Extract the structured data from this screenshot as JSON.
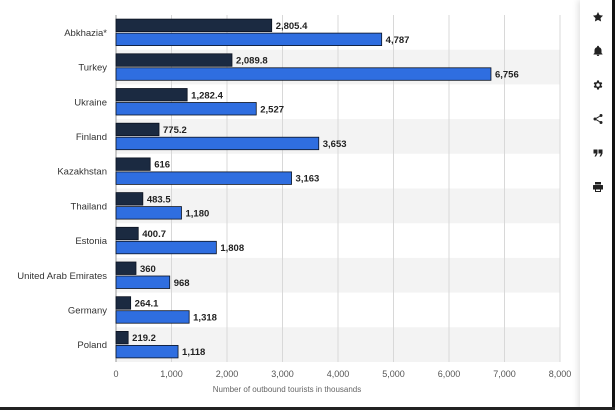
{
  "chart_data": {
    "type": "bar",
    "orientation": "horizontal",
    "categories": [
      "Abkhazia*",
      "Turkey",
      "Ukraine",
      "Finland",
      "Kazakhstan",
      "Thailand",
      "Estonia",
      "United Arab Emirates",
      "Germany",
      "Poland"
    ],
    "series": [
      {
        "color": "#1b2a41",
        "values": [
          2805.4,
          2089.8,
          1282.4,
          775.2,
          616,
          483.5,
          400.7,
          360,
          264.1,
          219.2
        ],
        "labels": [
          "2,805.4",
          "2,089.8",
          "1,282.4",
          "775.2",
          "616",
          "483.5",
          "400.7",
          "360",
          "264.1",
          "219.2"
        ]
      },
      {
        "color": "#2f6ee0",
        "values": [
          4787,
          6756,
          2527,
          3653,
          3163,
          1180,
          1808,
          968,
          1318,
          1118
        ],
        "labels": [
          "4,787",
          "6,756",
          "2,527",
          "3,653",
          "3,163",
          "1,180",
          "1,808",
          "968",
          "1,318",
          "1,118"
        ]
      }
    ],
    "xlabel": "Number of outbound tourists in thousands",
    "xlim": [
      0,
      8000
    ],
    "xticks": [
      0,
      1000,
      2000,
      3000,
      4000,
      5000,
      6000,
      7000,
      8000
    ],
    "xtick_labels": [
      "0",
      "1,000",
      "2,000",
      "3,000",
      "4,000",
      "5,000",
      "6,000",
      "7,000",
      "8,000"
    ],
    "grid": "vertical",
    "legend": "none"
  },
  "toolbar": {
    "buttons": [
      {
        "icon": "star-icon"
      },
      {
        "icon": "bell-icon"
      },
      {
        "icon": "gear-icon"
      },
      {
        "icon": "share-icon"
      },
      {
        "icon": "quote-icon"
      },
      {
        "icon": "print-icon"
      }
    ]
  }
}
